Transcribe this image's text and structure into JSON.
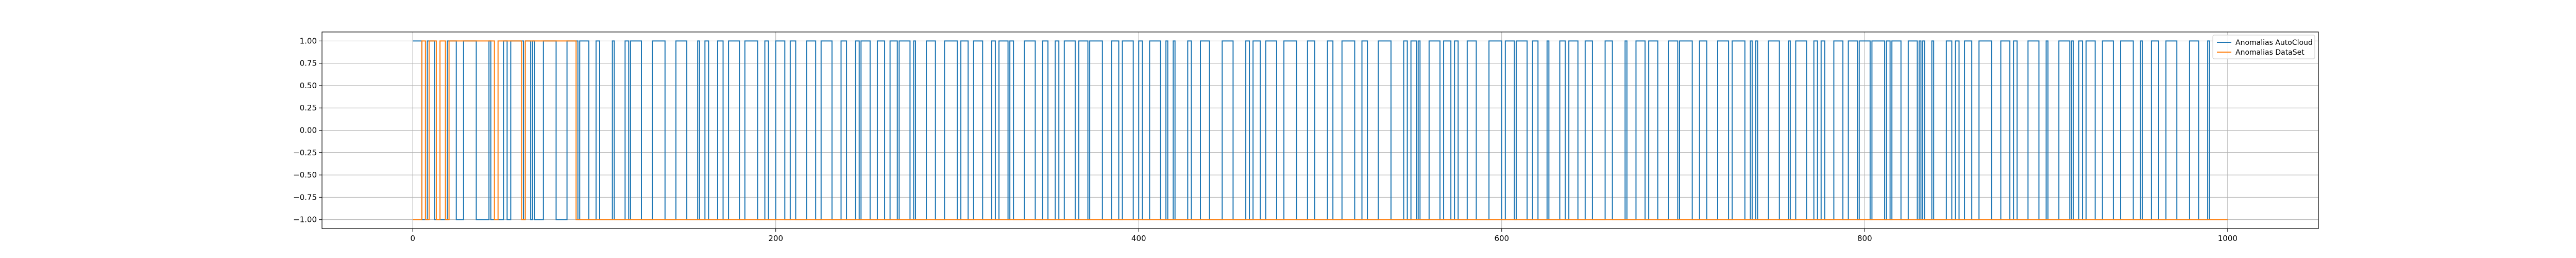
{
  "chart_data": {
    "type": "line",
    "title": "",
    "xlabel": "",
    "ylabel": "",
    "xlim": [
      -50,
      1050
    ],
    "ylim": [
      -1.1,
      1.1
    ],
    "grid": true,
    "legend_position": "top-right",
    "x_ticks": [
      0,
      200,
      400,
      600,
      800,
      1000
    ],
    "x_tick_labels": [
      "0",
      "200",
      "400",
      "600",
      "800",
      "1000"
    ],
    "y_ticks": [
      1.0,
      0.75,
      0.5,
      0.25,
      0.0,
      -0.25,
      -0.5,
      -0.75,
      -1.0
    ],
    "y_tick_labels": [
      "1.00",
      "0.75",
      "0.50",
      "0.25",
      "0.00",
      "−0.25",
      "−0.50",
      "−0.75",
      "−1.00"
    ],
    "series": [
      {
        "name": "Anomalias AutoCloud",
        "color": "#1f77b4",
        "x_range": [
          0,
          990
        ],
        "note": "binary signal alternating between -1 and 1",
        "values_pattern_seed": 7
      },
      {
        "name": "Anomalias DataSet",
        "color": "#ff7f0e",
        "segments": [
          {
            "x0": 0,
            "x1": 5,
            "y": -1
          },
          {
            "x0": 5,
            "x1": 7,
            "y": 1
          },
          {
            "x0": 7,
            "x1": 9,
            "y": -1
          },
          {
            "x0": 9,
            "x1": 13,
            "y": 1
          },
          {
            "x0": 13,
            "x1": 15,
            "y": -1
          },
          {
            "x0": 15,
            "x1": 18,
            "y": 1
          },
          {
            "x0": 18,
            "x1": 20,
            "y": -1
          },
          {
            "x0": 20,
            "x1": 45,
            "y": 1
          },
          {
            "x0": 45,
            "x1": 47,
            "y": -1
          },
          {
            "x0": 47,
            "x1": 60,
            "y": 1
          },
          {
            "x0": 60,
            "x1": 62,
            "y": -1
          },
          {
            "x0": 62,
            "x1": 90,
            "y": 1
          },
          {
            "x0": 90,
            "x1": 1000,
            "y": -1
          }
        ]
      }
    ]
  }
}
